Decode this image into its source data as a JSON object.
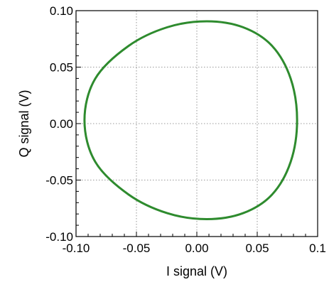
{
  "chart_data": {
    "type": "line",
    "title": "",
    "xlabel": "I signal (V)",
    "ylabel": "Q signal (V)",
    "xlim": [
      -0.1,
      0.1
    ],
    "ylim": [
      -0.1,
      0.1
    ],
    "xticks": [
      "-0.10",
      "-0.05",
      "0.00",
      "0.05",
      "0.1"
    ],
    "yticks": [
      "0.10",
      "0.05",
      "0.00",
      "-0.05",
      "-0.10"
    ],
    "grid": true,
    "legend": "none",
    "series": [
      {
        "color": "#2e8b2e",
        "shape": "ellipse",
        "x": [
          0.083,
          0.0777,
          0.0623,
          0.0383,
          0.0082,
          -0.0245,
          -0.0565,
          -0.0841,
          -0.093,
          -0.0841,
          -0.0565,
          -0.0245,
          0.0082,
          0.0383,
          0.0623,
          0.0777,
          0.083
        ],
        "y": [
          0.003,
          0.0398,
          0.0688,
          0.0853,
          0.0906,
          0.0853,
          0.0688,
          0.0398,
          0.003,
          -0.0338,
          -0.0628,
          -0.0793,
          -0.0846,
          -0.0793,
          -0.0628,
          -0.0338,
          0.003
        ]
      }
    ]
  }
}
